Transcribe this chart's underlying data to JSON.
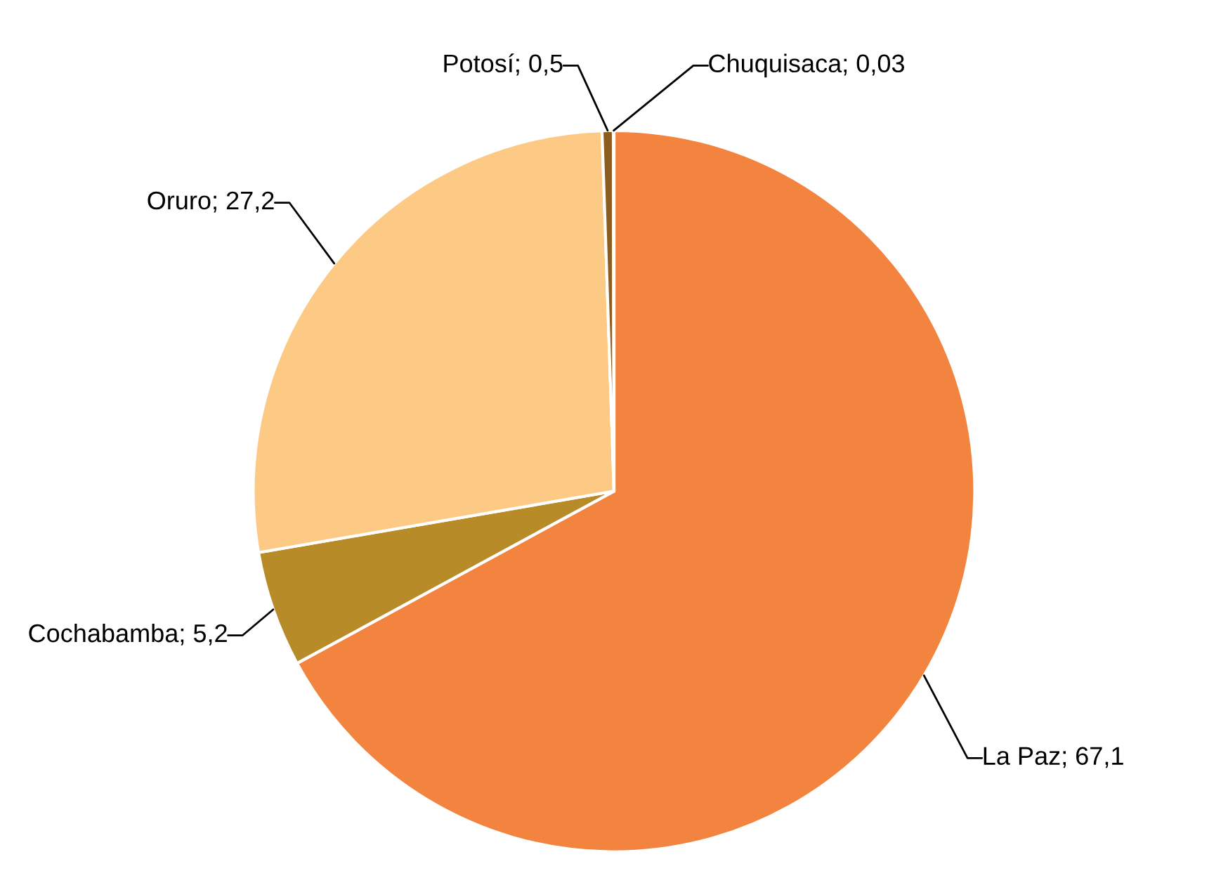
{
  "chart_data": {
    "type": "pie",
    "categories": [
      "La Paz",
      "Cochabamba",
      "Oruro",
      "Potosí",
      "Chuquisaca"
    ],
    "values": [
      67.1,
      5.2,
      27.2,
      0.5,
      0.03
    ],
    "value_labels": [
      "67,1",
      "5,2",
      "27,2",
      "0,5",
      "0,03"
    ],
    "colors": [
      "#f3843f",
      "#b78b28",
      "#fdca86",
      "#8c5e1e",
      "#6b4514"
    ],
    "legend": false
  }
}
